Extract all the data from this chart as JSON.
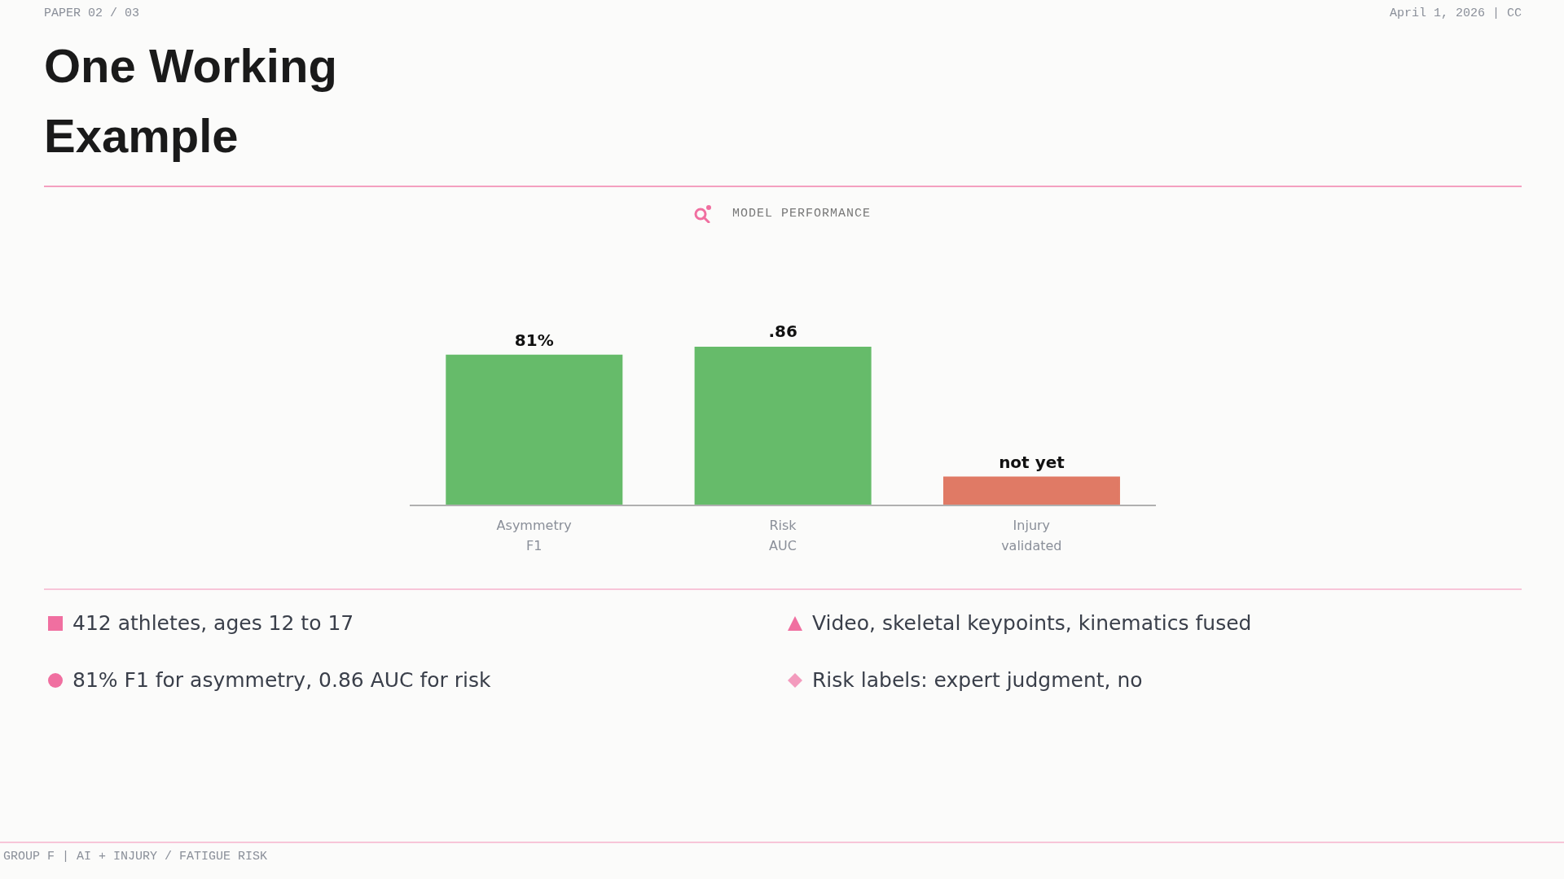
{
  "chart_data": {
    "type": "bar",
    "title": "One Working Example",
    "subtitle": "MODEL PERFORMANCE",
    "categories": [
      "Asymmetry F1",
      "Risk AUC",
      "Injury validated"
    ],
    "values": [
      0.81,
      0.86,
      0.15
    ],
    "colors": [
      "#66bb6a",
      "#66bb6a",
      "#e07a65"
    ],
    "value_labels": [
      "81%",
      ".86",
      "not yet"
    ],
    "annotations": [
      "PAPER 02 / 03",
      "April 1, 2026 | CC",
      "412 athletes, ages 12 to 17",
      "Video, skeletal keypoints, kinematics fused",
      "81% F1 for asymmetry, 0.86 AUC for risk",
      "Risk labels: expert judgment, no",
      "GROUP F | AI + INJURY / FATIGUE RISK"
    ]
  }
}
